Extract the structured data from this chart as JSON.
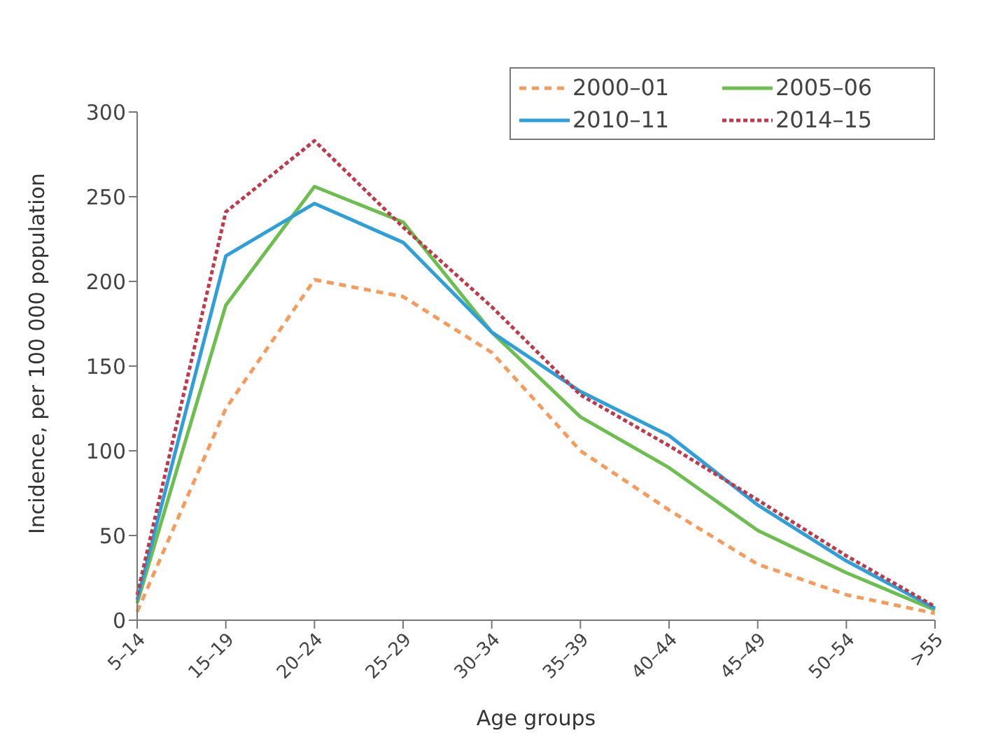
{
  "chart_data": {
    "type": "line",
    "xlabel": "Age groups",
    "ylabel": "Incidence, per 100 000 population",
    "categories": [
      "5–14",
      "15–19",
      "20–24",
      "25–29",
      "30–34",
      "35–39",
      "40–44",
      "45–49",
      "50–54",
      ">55"
    ],
    "series": [
      {
        "name": "2000–01",
        "color": "#f79a5a",
        "line_style": "dashed",
        "values": [
          5,
          125,
          201,
          191,
          158,
          100,
          65,
          33,
          15,
          4
        ]
      },
      {
        "name": "2005–06",
        "color": "#6cbf4e",
        "line_style": "solid",
        "values": [
          10,
          186,
          256,
          235,
          170,
          120,
          90,
          53,
          28,
          6
        ]
      },
      {
        "name": "2010–11",
        "color": "#2e9fd9",
        "line_style": "solid",
        "values": [
          12,
          215,
          246,
          223,
          170,
          135,
          109,
          68,
          35,
          7
        ]
      },
      {
        "name": "2014–15",
        "color": "#c0394b",
        "line_style": "dotted",
        "values": [
          15,
          241,
          283,
          232,
          185,
          133,
          103,
          71,
          38,
          8
        ]
      }
    ],
    "ylim": [
      0,
      300
    ],
    "yticks": [
      0,
      50,
      100,
      150,
      200,
      250,
      300
    ],
    "legend": "top right",
    "marker": "none"
  }
}
